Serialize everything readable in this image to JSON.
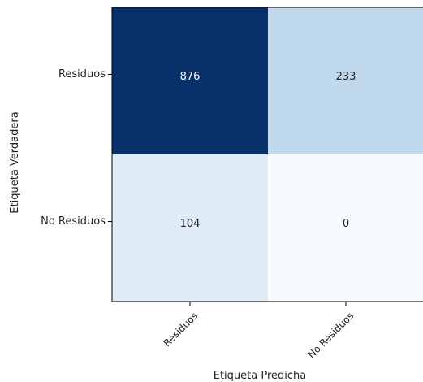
{
  "chart_data": {
    "type": "heatmap",
    "title": "",
    "xlabel": "Etiqueta Predicha",
    "ylabel": "Etiqueta Verdadera",
    "x_categories": [
      "Residuos",
      "No Residuos"
    ],
    "y_categories": [
      "Residuos",
      "No Residuos"
    ],
    "values": [
      [
        876,
        233
      ],
      [
        104,
        0
      ]
    ],
    "colormap": "Blues",
    "colors": {
      "light_text": "#ffffff",
      "dark_text": "#222222"
    }
  }
}
